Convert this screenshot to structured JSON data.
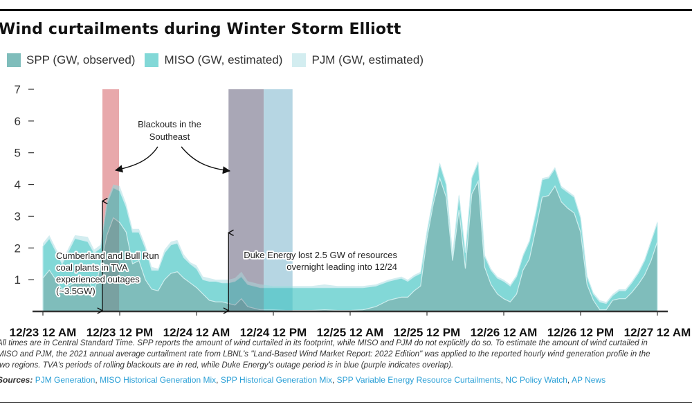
{
  "chart_data": {
    "type": "area",
    "stacked": true,
    "title": "Wind curtailments during Winter Storm Elliott",
    "xlabel": "",
    "ylabel": "",
    "ylim": [
      0,
      7
    ],
    "yticks": [
      "1",
      "2",
      "3",
      "4",
      "5",
      "6",
      "7"
    ],
    "ytick_values": [
      1,
      2,
      3,
      4,
      5,
      6,
      7
    ],
    "x_unit": "hours since 12/23 12 AM (CST)",
    "xlim": [
      0,
      96
    ],
    "xticks": [
      "12/23 12 AM",
      "12/23 12 PM",
      "12/24 12 AM",
      "12/24 12 PM",
      "12/25 12 AM",
      "12/25 12 PM",
      "12/26 12 AM",
      "12/26 12 PM",
      "12/27 12 AM"
    ],
    "xtick_values": [
      0,
      12,
      24,
      36,
      48,
      60,
      72,
      84,
      96
    ],
    "legend_position": "top-left",
    "grid": false,
    "hours": [
      0,
      1,
      3,
      5,
      7,
      8,
      9,
      10,
      11,
      12,
      13,
      14,
      15,
      16,
      17,
      18,
      19,
      20,
      21,
      22,
      23,
      24,
      25,
      26,
      27,
      28,
      29,
      30,
      31,
      32,
      33,
      34,
      36,
      38,
      40,
      42,
      44,
      46,
      48,
      50,
      52,
      54,
      56,
      57,
      58,
      59,
      60,
      61,
      62,
      63,
      64,
      65,
      66,
      67,
      68,
      69,
      70,
      71,
      72,
      73,
      74,
      75,
      76,
      77,
      78,
      79,
      80,
      81,
      82,
      83,
      84,
      85,
      86,
      87,
      88,
      89,
      90,
      91,
      92,
      93,
      94,
      95,
      96
    ],
    "series": [
      {
        "name": "SPP (GW, observed)",
        "color": "#7fbdbb",
        "values": [
          1.05,
          1.3,
          0.7,
          0.9,
          1.0,
          0.6,
          1.45,
          2.4,
          2.95,
          2.8,
          2.5,
          1.5,
          1.6,
          1.0,
          0.7,
          0.65,
          1.0,
          1.2,
          1.25,
          1.05,
          0.9,
          0.75,
          0.55,
          0.35,
          0.3,
          0.3,
          0.25,
          0.2,
          0.4,
          0.15,
          0.1,
          0.05,
          0.05,
          0.03,
          0.03,
          0.03,
          0.05,
          0.03,
          0.03,
          0.05,
          0.15,
          0.35,
          0.45,
          0.45,
          0.65,
          0.8,
          2.3,
          3.4,
          4.2,
          3.6,
          1.6,
          3.2,
          1.35,
          3.7,
          4.1,
          1.4,
          0.85,
          0.55,
          0.4,
          0.3,
          0.55,
          1.3,
          1.65,
          2.6,
          3.6,
          3.65,
          3.95,
          3.45,
          3.25,
          3.1,
          2.5,
          0.85,
          0.35,
          0.05,
          0.05,
          0.35,
          0.4,
          0.4,
          0.6,
          0.85,
          1.15,
          1.6,
          2.2
        ]
      },
      {
        "name": "MISO (GW, estimated)",
        "color": "#82d8d7",
        "values": [
          1.0,
          1.0,
          0.8,
          1.4,
          1.2,
          1.25,
          0.55,
          1.0,
          0.95,
          1.0,
          0.8,
          1.0,
          0.9,
          1.0,
          0.6,
          0.65,
          0.85,
          0.9,
          0.9,
          0.65,
          0.6,
          0.6,
          0.45,
          0.6,
          0.65,
          0.6,
          0.65,
          0.75,
          0.7,
          0.7,
          0.7,
          0.7,
          0.7,
          0.72,
          0.72,
          0.72,
          0.7,
          0.72,
          0.72,
          0.7,
          0.65,
          0.6,
          0.6,
          0.5,
          0.45,
          0.4,
          0.2,
          0.2,
          0.45,
          0.4,
          0.15,
          0.45,
          0.5,
          0.5,
          0.6,
          0.35,
          0.45,
          0.5,
          0.55,
          0.5,
          0.55,
          0.45,
          0.55,
          0.5,
          0.55,
          0.55,
          0.55,
          0.45,
          0.5,
          0.5,
          0.45,
          0.25,
          0.2,
          0.25,
          0.2,
          0.15,
          0.25,
          0.25,
          0.3,
          0.35,
          0.45,
          0.6,
          0.6
        ]
      },
      {
        "name": "PJM (GW, estimated)",
        "color": "#d3edf0",
        "values": [
          0.1,
          0.1,
          0.1,
          0.1,
          0.15,
          0.1,
          0.1,
          0.1,
          0.1,
          0.15,
          0.1,
          0.1,
          0.1,
          0.1,
          0.1,
          0.05,
          0.1,
          0.1,
          0.1,
          0.1,
          0.05,
          0.1,
          0.1,
          0.1,
          0.05,
          0.1,
          0.1,
          0.1,
          0.15,
          0.1,
          0.1,
          0.1,
          0.05,
          0.05,
          0.05,
          0.05,
          0.1,
          0.05,
          0.05,
          0.05,
          0.05,
          0.05,
          0.05,
          0.05,
          0.05,
          0.05,
          0.05,
          0.05,
          0.05,
          0.05,
          0.05,
          0.05,
          0.05,
          0.05,
          0.05,
          0.05,
          0.05,
          0.05,
          0.05,
          0.05,
          0.05,
          0.05,
          0.05,
          0.05,
          0.05,
          0.05,
          0.05,
          0.05,
          0.05,
          0.05,
          0.05,
          0.05,
          0.05,
          0.05,
          0.05,
          0.05,
          0.05,
          0.05,
          0.05,
          0.05,
          0.05,
          0.05,
          0.05
        ]
      }
    ],
    "highlight_bands": [
      {
        "label": "TVA rolling blackouts",
        "color": "#e8a8ab",
        "start_hour": 9.3,
        "end_hour": 11.9
      },
      {
        "label": "TVA blackouts / Duke Energy outage overlap",
        "color": "#a9a7b6",
        "start_hour": 29.0,
        "end_hour": 34.5
      },
      {
        "label": "Duke Energy outage period",
        "color": "#b6d6e3",
        "start_hour": 34.5,
        "end_hour": 39.0
      }
    ],
    "annotations": [
      {
        "text_lines": [
          "Blackouts in the",
          "Southeast"
        ],
        "type": "label-with-arrows"
      },
      {
        "text_lines": [
          "Cumberland and Bull Run",
          "coal plants in TVA",
          "experienced outages",
          "(~3.5GW)"
        ],
        "type": "double-arrow",
        "hour": 9.3,
        "from_value": 0,
        "to_value": 3.5
      },
      {
        "text_lines": [
          "Duke Energy lost 2.5 GW of resources",
          "overnight leading into 12/24"
        ],
        "type": "double-arrow",
        "hour": 29.0,
        "from_value": 0,
        "to_value": 2.5
      }
    ]
  },
  "notes": {
    "lines": [
      "All times are in Central Standard Time. SPP reports the amount of wind curtailed in its footprint, while MISO and PJM do not explicitly do so. To estimate the amount of wind curtailed in",
      "MISO and PJM, the 2021 annual average curtailment rate from LBNL's \"Land-Based Wind Market Report: 2022 Edition\" was applied to the reported hourly wind generation profile in the",
      "two regions. TVA's periods of rolling blackouts are in red, while Duke Energy's outage period is in blue (purple indicates overlap)."
    ],
    "sources_label": "Sources:",
    "sources": [
      "PJM Generation",
      "MISO Historical Generation Mix",
      "SPP Historical Generation Mix",
      "SPP Variable Energy Resource Curtailments",
      "NC Policy Watch",
      "AP News"
    ]
  }
}
